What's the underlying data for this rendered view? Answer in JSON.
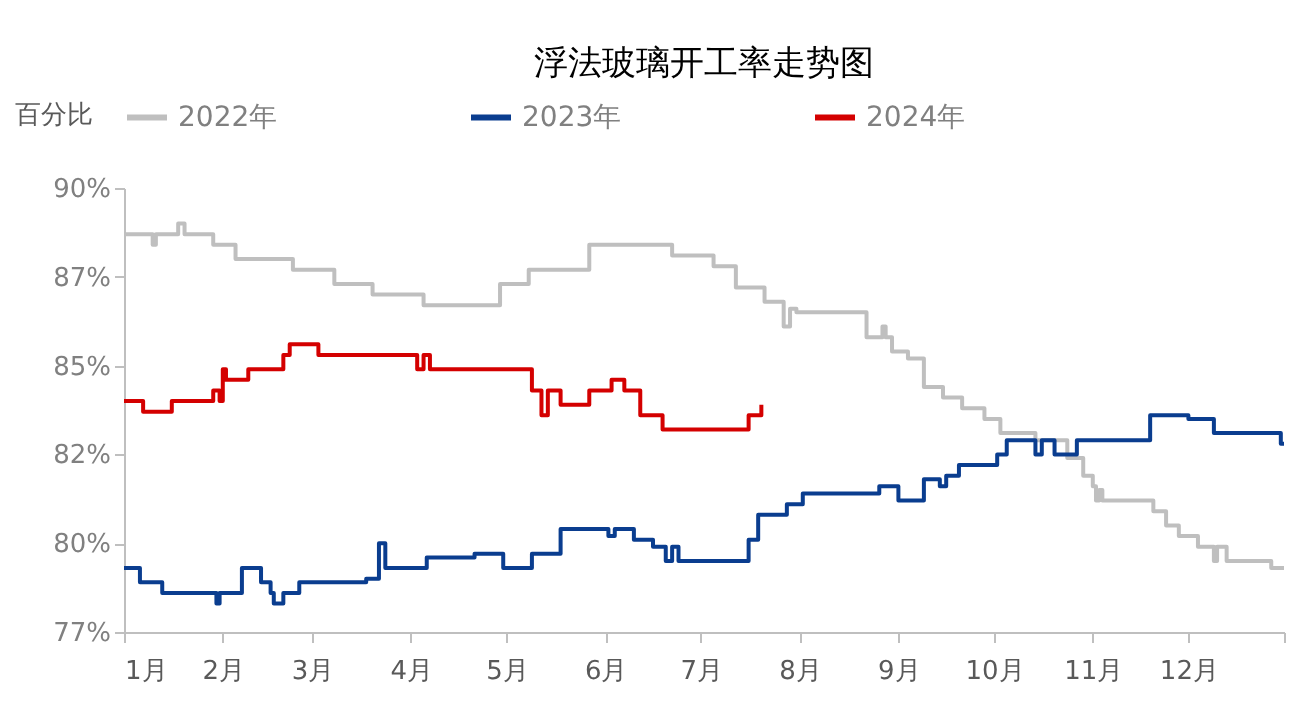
{
  "chart_data": {
    "type": "step",
    "title": "浮法玻璃开工率走势图",
    "ylabel": "百分比",
    "legend": "top",
    "xlim": [
      "--01-01",
      "--12-31"
    ],
    "xticks": [
      {
        "value": "--01-01",
        "label": "1月"
      },
      {
        "value": "--02-01",
        "label": "2月"
      },
      {
        "value": "--03-01",
        "label": "3月"
      },
      {
        "value": "--04-01",
        "label": "4月"
      },
      {
        "value": "--05-01",
        "label": "5月"
      },
      {
        "value": "--06-01",
        "label": "6月"
      },
      {
        "value": "--07-01",
        "label": "7月"
      },
      {
        "value": "--08-01",
        "label": "8月"
      },
      {
        "value": "--09-01",
        "label": "9月"
      },
      {
        "value": "--10-01",
        "label": "10月"
      },
      {
        "value": "--11-01",
        "label": "11月"
      },
      {
        "value": "--12-01",
        "label": "12月"
      },
      {
        "value": "--12-31",
        "label": null
      }
    ],
    "ylim": [
      77.5,
      90
    ],
    "yticks": [
      {
        "value": 77.5,
        "label": "77%"
      },
      {
        "value": 80,
        "label": "80%"
      },
      {
        "value": 82.5,
        "label": "82%"
      },
      {
        "value": 85,
        "label": "85%"
      },
      {
        "value": 87.5,
        "label": "87%"
      },
      {
        "value": 90,
        "label": "90%"
      }
    ],
    "series": [
      {
        "name": "2022年",
        "color": "#bfbfbf",
        "x": [
          "--01-01",
          "--01-10",
          "--01-11",
          "--01-18",
          "--01-20",
          "--01-29",
          "--02-05",
          "--02-23",
          "--03-08",
          "--03-20",
          "--04-05",
          "--04-29",
          "--05-08",
          "--05-27",
          "--06-22",
          "--07-05",
          "--07-12",
          "--07-21",
          "--07-27",
          "--07-29",
          "--07-31",
          "--08-22",
          "--08-27",
          "--08-28",
          "--08-30",
          "--09-04",
          "--09-09",
          "--09-15",
          "--09-21",
          "--09-28",
          "--10-03",
          "--10-14",
          "--10-24",
          "--10-29",
          "--11-01",
          "--11-02",
          "--11-03",
          "--11-04",
          "--11-20",
          "--11-24",
          "--11-28",
          "--12-04",
          "--12-09",
          "--12-10",
          "--12-13",
          "--12-27",
          "--12-31"
        ],
        "values": [
          88.7,
          88.4,
          88.7,
          89.0,
          88.7,
          88.4,
          88.0,
          87.7,
          87.3,
          87.0,
          86.7,
          87.3,
          87.7,
          88.4,
          88.1,
          87.8,
          87.2,
          86.8,
          86.1,
          86.6,
          86.5,
          85.8,
          86.1,
          85.8,
          85.4,
          85.2,
          84.4,
          84.1,
          83.8,
          83.5,
          83.1,
          82.9,
          82.4,
          81.9,
          81.6,
          81.2,
          81.5,
          81.2,
          80.9,
          80.5,
          80.2,
          79.9,
          79.5,
          79.9,
          79.5,
          79.3,
          79.3
        ]
      },
      {
        "name": "2023年",
        "color": "#0a3d8f",
        "x": [
          "--01-01",
          "--01-06",
          "--01-13",
          "--01-30",
          "--01-31",
          "--02-07",
          "--02-13",
          "--02-16",
          "--02-17",
          "--02-20",
          "--02-25",
          "--03-18",
          "--03-22",
          "--03-24",
          "--04-06",
          "--04-21",
          "--04-30",
          "--05-09",
          "--05-18",
          "--06-02",
          "--06-04",
          "--06-10",
          "--06-16",
          "--06-20",
          "--06-22",
          "--06-24",
          "--07-16",
          "--07-19",
          "--07-28",
          "--08-02",
          "--08-26",
          "--09-01",
          "--09-09",
          "--09-14",
          "--09-16",
          "--09-20",
          "--10-02",
          "--10-05",
          "--10-14",
          "--10-16",
          "--10-20",
          "--10-27",
          "--11-19",
          "--12-01",
          "--12-09",
          "--12-30",
          "--12-31"
        ],
        "values": [
          79.3,
          78.9,
          78.6,
          78.3,
          78.6,
          79.3,
          78.9,
          78.6,
          78.3,
          78.6,
          78.9,
          79.0,
          80.0,
          79.3,
          79.6,
          79.7,
          79.3,
          79.7,
          80.4,
          80.2,
          80.4,
          80.1,
          79.9,
          79.5,
          79.9,
          79.5,
          80.1,
          80.8,
          81.1,
          81.4,
          81.6,
          81.2,
          81.8,
          81.6,
          81.9,
          82.2,
          82.5,
          82.9,
          82.5,
          82.9,
          82.5,
          82.9,
          83.6,
          83.5,
          83.1,
          82.8,
          82.8
        ]
      },
      {
        "name": "2024年",
        "color": "#d40000",
        "x": [
          "--01-01",
          "--01-07",
          "--01-16",
          "--01-29",
          "--01-31",
          "--02-01",
          "--02-02",
          "--02-09",
          "--02-20",
          "--02-22",
          "--03-03",
          "--04-03",
          "--04-05",
          "--04-07",
          "--05-09",
          "--05-12",
          "--05-14",
          "--05-18",
          "--05-27",
          "--06-03",
          "--06-07",
          "--06-12",
          "--06-19",
          "--07-16",
          "--07-20"
        ],
        "values": [
          84.0,
          83.7,
          84.0,
          84.3,
          84.0,
          84.9,
          84.6,
          84.9,
          85.3,
          85.6,
          85.3,
          84.9,
          85.3,
          84.9,
          84.3,
          83.6,
          84.3,
          83.9,
          84.3,
          84.6,
          84.3,
          83.6,
          83.2,
          83.6,
          83.9
        ]
      }
    ]
  }
}
